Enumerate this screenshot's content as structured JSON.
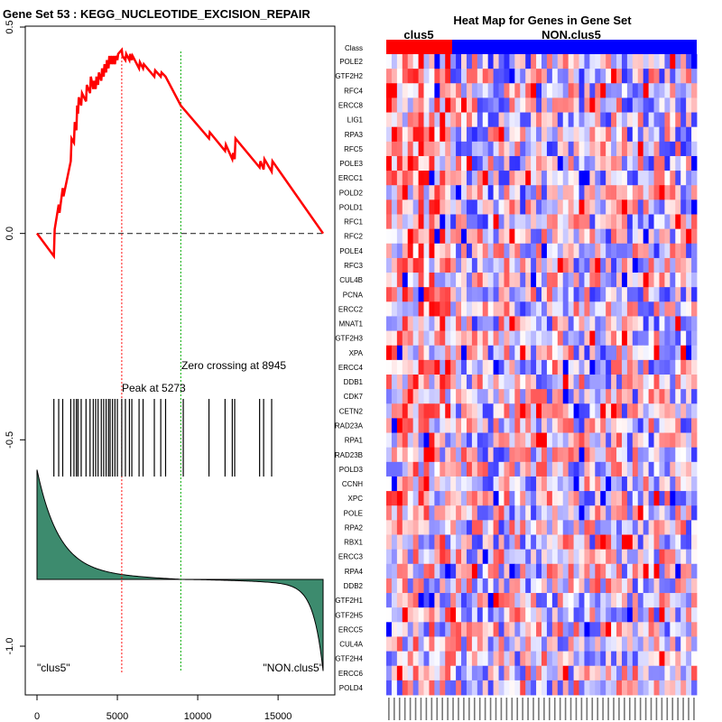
{
  "left_panel": {
    "title": "Gene Set  53 : KEGG_NUCLEOTIDE_EXCISION_REPAIR",
    "peak_label": "Peak at 5273",
    "zero_label": "Zero crossing at 8945",
    "left_class_label": "\"clus5\"",
    "right_class_label": "\"NON.clus5\"",
    "x_ticks": [
      0,
      5000,
      10000,
      15000
    ],
    "y_ticks": [
      0.5,
      0.0,
      -0.5,
      -1.0
    ],
    "y_tick_labels": [
      "0.5",
      "0.0",
      "-0.5",
      "-1.0"
    ],
    "colors": {
      "es_line": "#ff0000",
      "peak_line": "#ff0000",
      "zero_line": "#00aa00",
      "hits": "#000000",
      "metric_fill": "#3d8b6e",
      "baseline": "#333333"
    }
  },
  "right_panel": {
    "title": "Heat Map for Genes in Gene Set",
    "class_row_label": "Class",
    "group1": "clus5",
    "group2": "NON.clus5",
    "colors": {
      "group1": "#ff0000",
      "group2": "#0000ff"
    },
    "genes": [
      "POLE2",
      "GTF2H2",
      "RFC4",
      "ERCC8",
      "LIG1",
      "RPA3",
      "RFC5",
      "POLE3",
      "ERCC1",
      "POLD2",
      "POLD1",
      "RFC1",
      "RFC2",
      "POLE4",
      "RFC3",
      "CUL4B",
      "PCNA",
      "ERCC2",
      "MNAT1",
      "GTF2H3",
      "XPA",
      "ERCC4",
      "DDB1",
      "CDK7",
      "CETN2",
      "RAD23A",
      "RPA1",
      "RAD23B",
      "POLD3",
      "CCNH",
      "XPC",
      "POLE",
      "RPA2",
      "RBX1",
      "ERCC3",
      "RPA4",
      "DDB2",
      "GTF2H1",
      "GTF2H5",
      "ERCC5",
      "CUL4A",
      "GTF2H4",
      "ERCC6",
      "POLD4"
    ]
  },
  "chart_data": [
    {
      "type": "line",
      "title": "Gene Set  53 : KEGG_NUCLEOTIDE_EXCISION_REPAIR",
      "xlim": [
        0,
        17800
      ],
      "ylim": [
        -1.08,
        0.5
      ],
      "series": [
        {
          "x": [
            0,
            1050,
            1100,
            1350,
            1400,
            1600,
            1650,
            2100,
            2150,
            2300,
            2350,
            2450,
            2500,
            2550,
            2600,
            2750,
            2800,
            3050,
            3100,
            3300,
            3350,
            3500,
            3550,
            3650,
            3700,
            3800,
            3850,
            4000,
            4050,
            4150,
            4200,
            4300,
            4350,
            4450,
            4500,
            4550,
            4600,
            4700,
            4750,
            4850,
            4900,
            5000,
            5050,
            5273,
            5320,
            5500,
            5550,
            5750,
            5800,
            5900,
            5950,
            6350,
            6400,
            6600,
            6650,
            7300,
            7350,
            7700,
            7750,
            8000,
            8945,
            10700,
            10750,
            11700,
            11750,
            12150,
            12200,
            12300,
            12350,
            13850,
            13900,
            14100,
            14150,
            14600,
            14650,
            17800
          ],
          "y": [
            0.0,
            -0.055,
            0.01,
            0.07,
            0.05,
            0.11,
            0.09,
            0.175,
            0.23,
            0.22,
            0.27,
            0.25,
            0.31,
            0.29,
            0.33,
            0.31,
            0.34,
            0.32,
            0.36,
            0.34,
            0.38,
            0.35,
            0.37,
            0.35,
            0.38,
            0.36,
            0.39,
            0.37,
            0.4,
            0.38,
            0.41,
            0.39,
            0.42,
            0.4,
            0.43,
            0.41,
            0.43,
            0.41,
            0.43,
            0.41,
            0.43,
            0.42,
            0.435,
            0.445,
            0.43,
            0.42,
            0.435,
            0.42,
            0.435,
            0.42,
            0.43,
            0.4,
            0.415,
            0.4,
            0.41,
            0.38,
            0.395,
            0.38,
            0.39,
            0.38,
            0.31,
            0.23,
            0.245,
            0.2,
            0.215,
            0.18,
            0.195,
            0.18,
            0.23,
            0.16,
            0.175,
            0.155,
            0.18,
            0.15,
            0.175,
            0.0
          ]
        }
      ],
      "peak_x": 5273,
      "zero_crossing_x": 8945,
      "hit_positions": [
        1050,
        1350,
        1600,
        2100,
        2300,
        2450,
        2550,
        2750,
        3050,
        3300,
        3500,
        3650,
        3800,
        4000,
        4150,
        4300,
        4450,
        4550,
        4700,
        4850,
        5000,
        5273,
        5500,
        5750,
        5900,
        6350,
        6600,
        7300,
        7700,
        8000,
        9100,
        10700,
        11700,
        12150,
        12300,
        13850,
        14100,
        14600
      ]
    },
    {
      "type": "heatmap",
      "title": "Heat Map for Genes in Gene Set",
      "rows": [
        "POLE2",
        "GTF2H2",
        "RFC4",
        "ERCC8",
        "LIG1",
        "RPA3",
        "RFC5",
        "POLE3",
        "ERCC1",
        "POLD2",
        "POLD1",
        "RFC1",
        "RFC2",
        "POLE4",
        "RFC3",
        "CUL4B",
        "PCNA",
        "ERCC2",
        "MNAT1",
        "GTF2H3",
        "XPA",
        "ERCC4",
        "DDB1",
        "CDK7",
        "CETN2",
        "RAD23A",
        "RPA1",
        "RAD23B",
        "POLD3",
        "CCNH",
        "XPC",
        "POLE",
        "RPA2",
        "RBX1",
        "ERCC3",
        "RPA4",
        "DDB2",
        "GTF2H1",
        "GTF2H5",
        "ERCC5",
        "CUL4A",
        "GTF2H4",
        "ERCC6",
        "POLD4"
      ],
      "groups": [
        {
          "name": "clus5",
          "columns": 12
        },
        {
          "name": "NON.clus5",
          "columns": 46
        }
      ],
      "columns": 58,
      "color_scale": [
        "#0000ff",
        "#ffffff",
        "#ff0000"
      ]
    }
  ]
}
